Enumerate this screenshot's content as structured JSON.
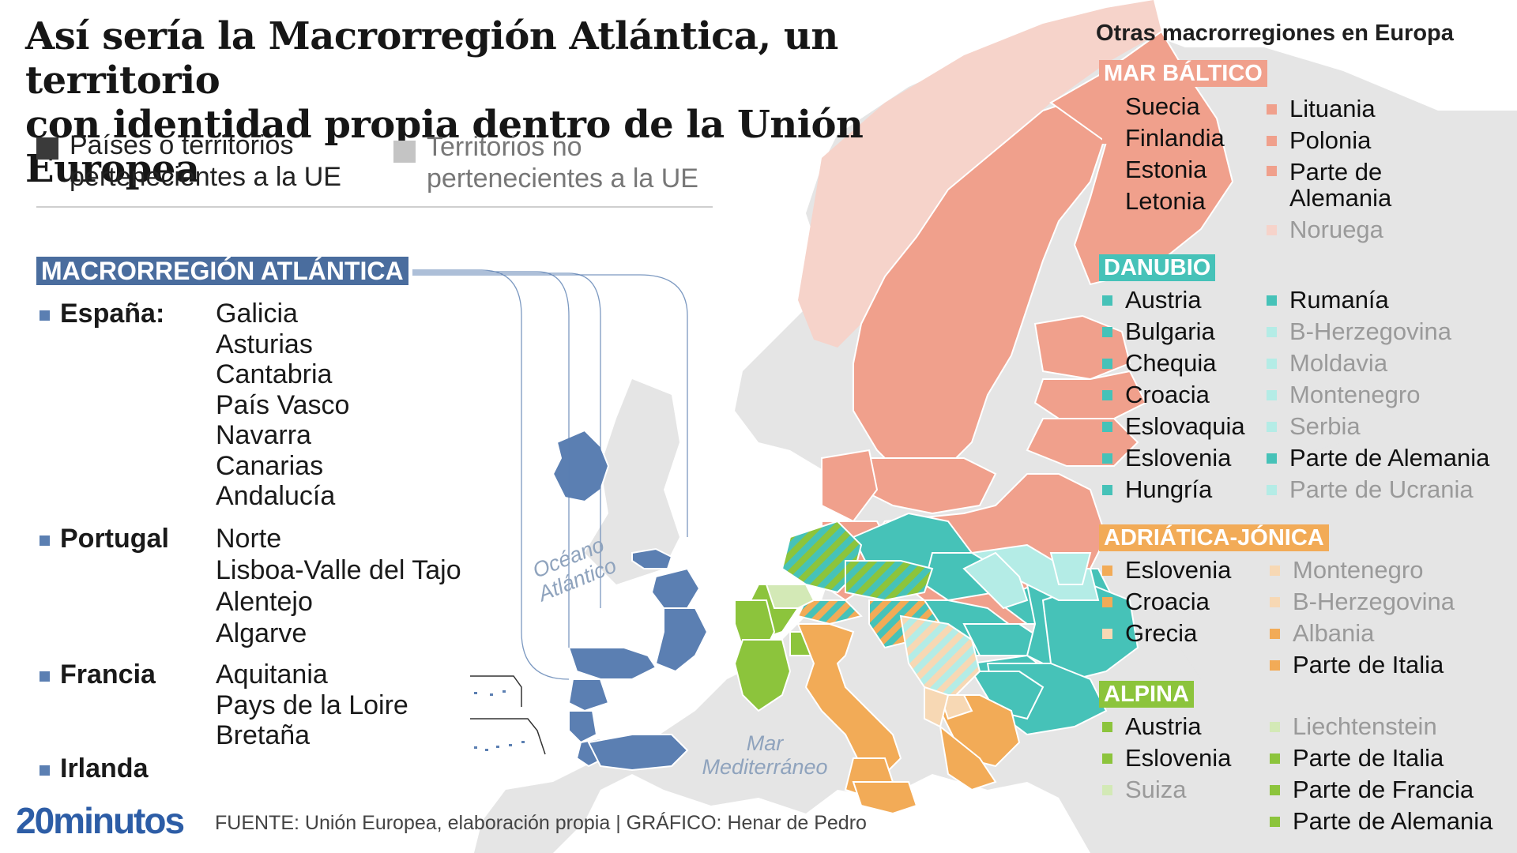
{
  "title": {
    "line1": "Así sería la Macrorregión Atlántica, un territorio",
    "line2": "con identidad propia dentro de la Unión Europea"
  },
  "legend": {
    "eu": {
      "line1": "Países o territorios",
      "line2": "pertenecientes a la UE",
      "color": "#3a3a3a"
    },
    "non_eu": {
      "line1": "Territorios no",
      "line2": "pertenecientes a la UE",
      "color": "#c4c4c4"
    }
  },
  "atlantica": {
    "header": "MACRORREGIÓN ATLÁNTICA",
    "color": "#5b7fb2",
    "countries": [
      {
        "name": "España:",
        "regions": [
          "Galicia",
          "Asturias",
          "Cantabria",
          "País Vasco",
          "Navarra",
          "Canarias",
          "Andalucía"
        ]
      },
      {
        "name": "Portugal",
        "regions": [
          "Norte",
          "Lisboa-Valle del Tajo",
          "Alentejo",
          "Algarve"
        ]
      },
      {
        "name": "Francia",
        "regions": [
          "Aquitania",
          "Pays de la Loire",
          "Bretaña"
        ]
      },
      {
        "name": "Irlanda",
        "regions": []
      }
    ]
  },
  "map_labels": {
    "ocean": {
      "line1": "Océano",
      "line2": "Atlántico"
    },
    "sea": {
      "line1": "Mar",
      "line2": "Mediterráneo"
    }
  },
  "others": {
    "title": "Otras macrorregiones en Europa",
    "baltic": {
      "header": "MAR BÁLTICO",
      "color": "#f0a08c",
      "light": "#f6d3ca",
      "col1": [
        {
          "name": "Suecia",
          "eu": true
        },
        {
          "name": "Finlandia",
          "eu": true
        },
        {
          "name": "Estonia",
          "eu": true
        },
        {
          "name": "Letonia",
          "eu": true
        }
      ],
      "col2": [
        {
          "name": "Lituania",
          "eu": true
        },
        {
          "name": "Polonia",
          "eu": true
        },
        {
          "name": "Parte de Alemania",
          "eu": true
        },
        {
          "name": "Noruega",
          "eu": false
        }
      ]
    },
    "danube": {
      "header": "DANUBIO",
      "color": "#46c2b8",
      "light": "#b4ece6",
      "col1": [
        {
          "name": "Austria",
          "eu": true
        },
        {
          "name": "Bulgaria",
          "eu": true
        },
        {
          "name": "Chequia",
          "eu": true
        },
        {
          "name": "Croacia",
          "eu": true
        },
        {
          "name": "Eslovaquia",
          "eu": true
        },
        {
          "name": "Eslovenia",
          "eu": true
        },
        {
          "name": "Hungría",
          "eu": true
        }
      ],
      "col2": [
        {
          "name": "Rumanía",
          "eu": true
        },
        {
          "name": "B-Herzegovina",
          "eu": false
        },
        {
          "name": "Moldavia",
          "eu": false
        },
        {
          "name": "Montenegro",
          "eu": false
        },
        {
          "name": "Serbia",
          "eu": false
        },
        {
          "name": "Parte de Alemania",
          "eu": true
        },
        {
          "name": "Parte de Ucrania",
          "eu": false
        }
      ]
    },
    "adriatic": {
      "header": "ADRIÁTICA-JÓNICA",
      "color": "#f2ab57",
      "light": "#f7d8b4",
      "col1": [
        {
          "name": "Eslovenia",
          "eu": true
        },
        {
          "name": "Croacia",
          "eu": true
        },
        {
          "name": "Grecia",
          "eu": true
        }
      ],
      "col2": [
        {
          "name": "Montenegro",
          "eu": false
        },
        {
          "name": "B-Herzegovina",
          "eu": false
        },
        {
          "name": "Albania",
          "eu": false
        },
        {
          "name": "Parte de Italia",
          "eu": true
        }
      ]
    },
    "alpine": {
      "header": "ALPINA",
      "color": "#8cc43c",
      "light": "#d3e9b6",
      "col1": [
        {
          "name": "Austria",
          "eu": true
        },
        {
          "name": "Eslovenia",
          "eu": true
        },
        {
          "name": "Suiza",
          "eu": false
        }
      ],
      "col2": [
        {
          "name": "Liechtenstein",
          "eu": false
        },
        {
          "name": "Parte de Italia",
          "eu": true
        },
        {
          "name": "Parte de Francia",
          "eu": true
        },
        {
          "name": "Parte de Alemania",
          "eu": true
        }
      ]
    }
  },
  "footer": {
    "logo": "20minutos",
    "source": "FUENTE: Unión Europea, elaboración propia  |  GRÁFICO: Henar de Pedro"
  },
  "colors": {
    "land": "#e5e5e5",
    "atlantic": "#5b7fb2"
  }
}
